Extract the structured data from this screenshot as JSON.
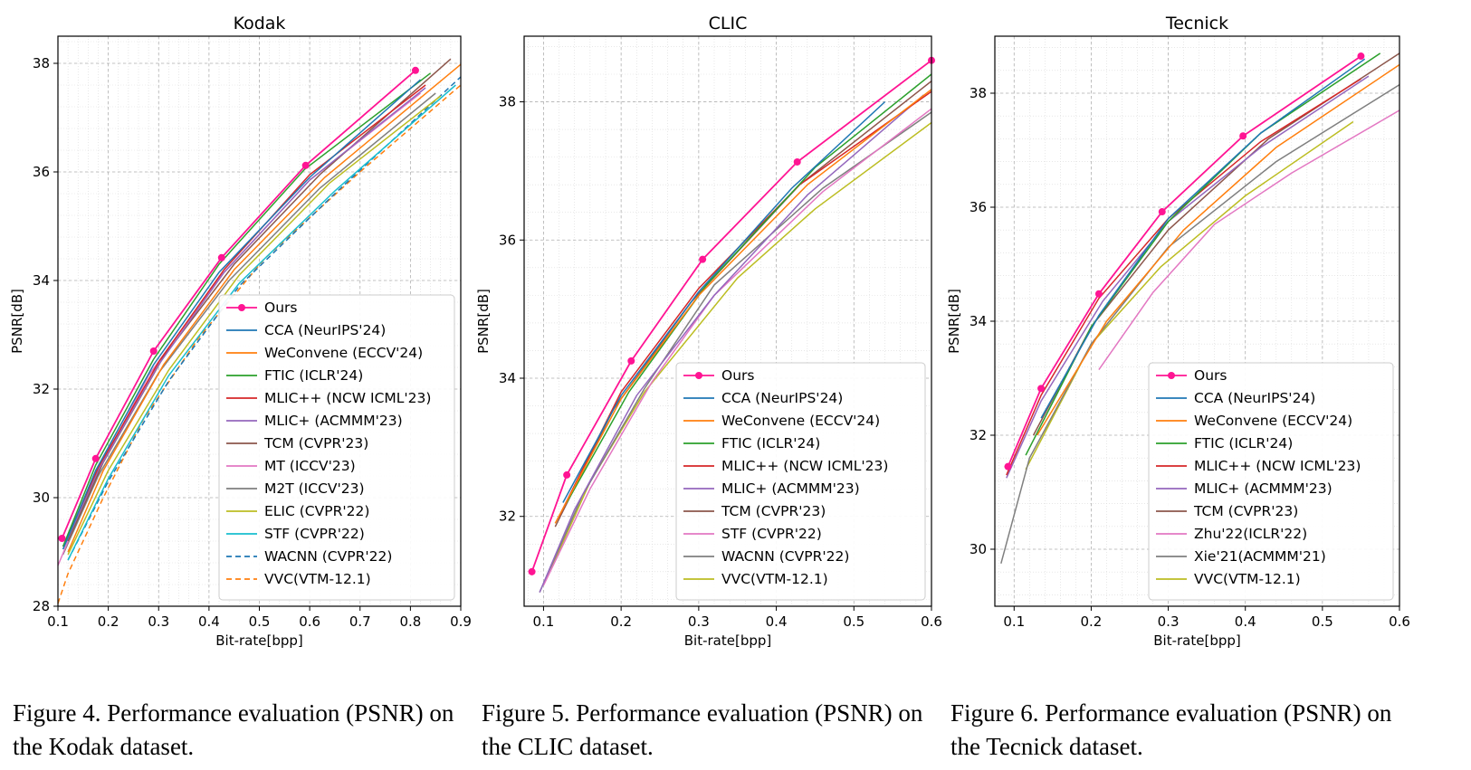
{
  "figures": [
    {
      "caption": "Figure 4. Performance evaluation (PSNR) on\nthe Kodak dataset.",
      "chart_data": {
        "type": "line",
        "title": "Kodak",
        "xlabel": "Bit-rate[bpp]",
        "ylabel": "PSNR[dB]",
        "xlim": [
          0.1,
          0.9
        ],
        "ylim": [
          28,
          38.5
        ],
        "xticks": [
          "0.1",
          "0.2",
          "0.3",
          "0.4",
          "0.5",
          "0.6",
          "0.7",
          "0.8",
          "0.9"
        ],
        "yticks": [
          "28",
          "30",
          "32",
          "34",
          "36",
          "38"
        ],
        "grid": true,
        "legend_position": "lower-right",
        "series": [
          {
            "name": "Ours",
            "color": "#ff1493",
            "style": "solid",
            "marker": true,
            "x": [
              0.108,
              0.175,
              0.29,
              0.425,
              0.592,
              0.81
            ],
            "y": [
              29.25,
              30.72,
              32.7,
              34.42,
              36.12,
              37.87
            ]
          },
          {
            "name": "CCA (NeurIPS'24)",
            "color": "#1f77b4",
            "style": "solid",
            "x": [
              0.11,
              0.175,
              0.29,
              0.42,
              0.6,
              0.82
            ],
            "y": [
              29.05,
              30.5,
              32.45,
              34.15,
              35.9,
              37.7
            ]
          },
          {
            "name": "WeConvene (ECCV'24)",
            "color": "#ff7f0e",
            "style": "solid",
            "x": [
              0.12,
              0.19,
              0.31,
              0.45,
              0.63,
              0.9
            ],
            "y": [
              29.0,
              30.5,
              32.45,
              34.2,
              35.9,
              37.98
            ]
          },
          {
            "name": "FTIC (ICLR'24)",
            "color": "#2ca02c",
            "style": "solid",
            "x": [
              0.11,
              0.175,
              0.29,
              0.42,
              0.59,
              0.84
            ],
            "y": [
              29.1,
              30.6,
              32.55,
              34.3,
              36.05,
              37.82
            ]
          },
          {
            "name": "MLIC++ (NCW ICML'23)",
            "color": "#d62728",
            "style": "solid",
            "x": [
              0.11,
              0.18,
              0.3,
              0.43,
              0.6,
              0.83
            ],
            "y": [
              29.1,
              30.55,
              32.5,
              34.2,
              35.95,
              37.6
            ]
          },
          {
            "name": "MLIC+ (ACMMM'23)",
            "color": "#9467bd",
            "style": "solid",
            "x": [
              0.11,
              0.18,
              0.3,
              0.43,
              0.6,
              0.83
            ],
            "y": [
              29.05,
              30.5,
              32.45,
              34.15,
              35.85,
              37.55
            ]
          },
          {
            "name": "TCM (CVPR'23)",
            "color": "#8c564b",
            "style": "solid",
            "x": [
              0.12,
              0.19,
              0.31,
              0.45,
              0.62,
              0.88
            ],
            "y": [
              29.2,
              30.65,
              32.6,
              34.3,
              35.95,
              38.08
            ]
          },
          {
            "name": "MT (ICCV'23)",
            "color": "#e377c2",
            "style": "solid",
            "x": [
              0.1,
              0.17,
              0.28,
              0.42,
              0.6,
              0.82
            ],
            "y": [
              28.75,
              30.3,
              32.25,
              34.05,
              35.85,
              37.45
            ]
          },
          {
            "name": "M2T (ICCV'23)",
            "color": "#7f7f7f",
            "style": "solid",
            "x": [
              0.11,
              0.18,
              0.3,
              0.44,
              0.62,
              0.85
            ],
            "y": [
              28.95,
              30.4,
              32.3,
              34.0,
              35.7,
              37.45
            ]
          },
          {
            "name": "ELIC (CVPR'22)",
            "color": "#bcbd22",
            "style": "solid",
            "x": [
              0.12,
              0.2,
              0.32,
              0.46,
              0.64,
              0.86
            ],
            "y": [
              28.95,
              30.5,
              32.35,
              34.1,
              35.8,
              37.4
            ]
          },
          {
            "name": "STF (CVPR'22)",
            "color": "#17becf",
            "style": "solid",
            "x": [
              0.12,
              0.2,
              0.32,
              0.46,
              0.65,
              0.89
            ],
            "y": [
              28.85,
              30.35,
              32.25,
              33.95,
              35.65,
              37.6
            ]
          },
          {
            "name": "WACNN (CVPR'22)",
            "color": "#1f77b4",
            "style": "dashed",
            "x": [
              0.12,
              0.2,
              0.32,
              0.46,
              0.65,
              0.9
            ],
            "y": [
              28.85,
              30.3,
              32.15,
              33.9,
              35.6,
              37.75
            ]
          },
          {
            "name": "VVC(VTM-12.1)",
            "color": "#ff7f0e",
            "style": "dashed",
            "x": [
              0.1,
              0.12,
              0.19,
              0.27,
              0.38,
              0.51,
              0.7,
              0.9
            ],
            "y": [
              28.05,
              28.6,
              30.0,
              31.45,
              32.95,
              34.4,
              36.0,
              37.6
            ]
          }
        ]
      }
    },
    {
      "caption": "Figure 5. Performance evaluation (PSNR) on\nthe CLIC dataset.",
      "chart_data": {
        "type": "line",
        "title": "CLIC",
        "xlabel": "Bit-rate[bpp]",
        "ylabel": "PSNR[dB]",
        "xlim": [
          0.075,
          0.6
        ],
        "ylim": [
          30.7,
          38.95
        ],
        "xticks": [
          "0.1",
          "0.2",
          "0.3",
          "0.4",
          "0.5",
          "0.6"
        ],
        "yticks": [
          "32",
          "34",
          "36",
          "38"
        ],
        "grid": true,
        "legend_position": "lower-right",
        "series": [
          {
            "name": "Ours",
            "color": "#ff1493",
            "style": "solid",
            "marker": true,
            "x": [
              0.085,
              0.13,
              0.213,
              0.305,
              0.427,
              0.6
            ],
            "y": [
              31.2,
              32.6,
              34.25,
              35.72,
              37.13,
              38.6
            ]
          },
          {
            "name": "CCA (NeurIPS'24)",
            "color": "#1f77b4",
            "style": "solid",
            "x": [
              0.125,
              0.2,
              0.3,
              0.42,
              0.54
            ],
            "y": [
              32.2,
              33.75,
              35.25,
              36.75,
              38.0
            ]
          },
          {
            "name": "WeConvene (ECCV'24)",
            "color": "#ff7f0e",
            "style": "solid",
            "x": [
              0.115,
              0.2,
              0.3,
              0.44,
              0.6
            ],
            "y": [
              31.9,
              33.7,
              35.2,
              36.8,
              38.18
            ]
          },
          {
            "name": "FTIC (ICLR'24)",
            "color": "#2ca02c",
            "style": "solid",
            "x": [
              0.13,
              0.21,
              0.31,
              0.45,
              0.6
            ],
            "y": [
              32.2,
              33.8,
              35.35,
              37.05,
              38.4
            ]
          },
          {
            "name": "MLIC++ (NCW ICML'23)",
            "color": "#d62728",
            "style": "solid",
            "x": [
              0.12,
              0.2,
              0.3,
              0.43,
              0.6
            ],
            "y": [
              32.0,
              33.8,
              35.3,
              36.8,
              38.15
            ]
          },
          {
            "name": "MLIC+ (ACMMM'23)",
            "color": "#9467bd",
            "style": "solid",
            "x": [
              0.095,
              0.14,
              0.22,
              0.32,
              0.44,
              0.59
            ],
            "y": [
              30.9,
              32.1,
              33.75,
              35.2,
              36.65,
              38.1
            ]
          },
          {
            "name": "TCM (CVPR'23)",
            "color": "#8c564b",
            "style": "solid",
            "x": [
              0.115,
              0.19,
              0.29,
              0.43,
              0.6
            ],
            "y": [
              31.85,
              33.55,
              35.1,
              36.8,
              38.3
            ]
          },
          {
            "name": "STF (CVPR'22)",
            "color": "#e377c2",
            "style": "solid",
            "x": [
              0.1,
              0.16,
              0.24,
              0.32,
              0.46,
              0.6
            ],
            "y": [
              31.0,
              32.4,
              33.95,
              35.2,
              36.7,
              37.9
            ]
          },
          {
            "name": "WACNN (CVPR'22)",
            "color": "#7f7f7f",
            "style": "solid",
            "x": [
              0.095,
              0.15,
              0.23,
              0.32,
              0.46,
              0.6
            ],
            "y": [
              30.9,
              32.3,
              33.85,
              35.35,
              36.75,
              37.85
            ]
          },
          {
            "name": "VVC(VTM-12.1)",
            "color": "#bcbd22",
            "style": "solid",
            "x": [
              0.11,
              0.16,
              0.23,
              0.35,
              0.45,
              0.6
            ],
            "y": [
              31.25,
              32.5,
              33.8,
              35.45,
              36.45,
              37.7
            ]
          }
        ]
      }
    },
    {
      "caption": "Figure 6. Performance evaluation (PSNR) on\nthe Tecnick dataset.",
      "chart_data": {
        "type": "line",
        "title": "Tecnick",
        "xlabel": "Bit-rate[bpp]",
        "ylabel": "PSNR[dB]",
        "xlim": [
          0.075,
          0.6
        ],
        "ylim": [
          29.0,
          39.0
        ],
        "xticks": [
          "0.1",
          "0.2",
          "0.3",
          "0.4",
          "0.5",
          "0.6"
        ],
        "yticks": [
          "30",
          "32",
          "34",
          "36",
          "38"
        ],
        "grid": true,
        "legend_position": "lower-right",
        "series": [
          {
            "name": "Ours",
            "color": "#ff1493",
            "style": "solid",
            "marker": true,
            "x": [
              0.092,
              0.135,
              0.21,
              0.292,
              0.397,
              0.55
            ],
            "y": [
              31.45,
              32.82,
              34.48,
              35.92,
              37.25,
              38.65
            ]
          },
          {
            "name": "CCA (NeurIPS'24)",
            "color": "#1f77b4",
            "style": "solid",
            "x": [
              0.135,
              0.21,
              0.3,
              0.42,
              0.555
            ],
            "y": [
              32.3,
              34.1,
              35.8,
              37.3,
              38.6
            ]
          },
          {
            "name": "WeConvene (ECCV'24)",
            "color": "#ff7f0e",
            "style": "solid",
            "x": [
              0.13,
              0.22,
              0.32,
              0.44,
              0.6
            ],
            "y": [
              32.0,
              34.0,
              35.6,
              37.05,
              38.5
            ]
          },
          {
            "name": "FTIC (ICLR'24)",
            "color": "#2ca02c",
            "style": "solid",
            "x": [
              0.115,
              0.2,
              0.3,
              0.42,
              0.575
            ],
            "y": [
              31.65,
              33.9,
              35.75,
              37.3,
              38.7
            ]
          },
          {
            "name": "MLIC++ (NCW ICML'23)",
            "color": "#d62728",
            "style": "solid",
            "x": [
              0.09,
              0.135,
              0.21,
              0.3,
              0.42,
              0.55
            ],
            "y": [
              31.3,
              32.7,
              34.4,
              35.8,
              37.15,
              38.25
            ]
          },
          {
            "name": "MLIC+ (ACMMM'23)",
            "color": "#9467bd",
            "style": "solid",
            "x": [
              0.09,
              0.135,
              0.215,
              0.3,
              0.42,
              0.56
            ],
            "y": [
              31.25,
              32.6,
              34.35,
              35.75,
              37.05,
              38.3
            ]
          },
          {
            "name": "TCM (CVPR'23)",
            "color": "#8c564b",
            "style": "solid",
            "x": [
              0.125,
              0.2,
              0.3,
              0.43,
              0.6
            ],
            "y": [
              32.0,
              33.9,
              35.6,
              37.2,
              38.7
            ]
          },
          {
            "name": "Zhu'22(ICLR'22)",
            "color": "#e377c2",
            "style": "solid",
            "x": [
              0.21,
              0.28,
              0.36,
              0.46,
              0.6
            ],
            "y": [
              33.15,
              34.5,
              35.7,
              36.6,
              37.7
            ]
          },
          {
            "name": "Xie'21(ACMMM'21)",
            "color": "#7f7f7f",
            "style": "solid",
            "x": [
              0.083,
              0.12,
              0.2,
              0.3,
              0.44,
              0.6
            ],
            "y": [
              29.75,
              31.6,
              33.6,
              35.3,
              36.8,
              38.15
            ]
          },
          {
            "name": "VVC(VTM-12.1)",
            "color": "#bcbd22",
            "style": "solid",
            "x": [
              0.115,
              0.2,
              0.29,
              0.4,
              0.54
            ],
            "y": [
              31.4,
              33.6,
              34.95,
              36.2,
              37.5
            ]
          }
        ]
      }
    }
  ]
}
